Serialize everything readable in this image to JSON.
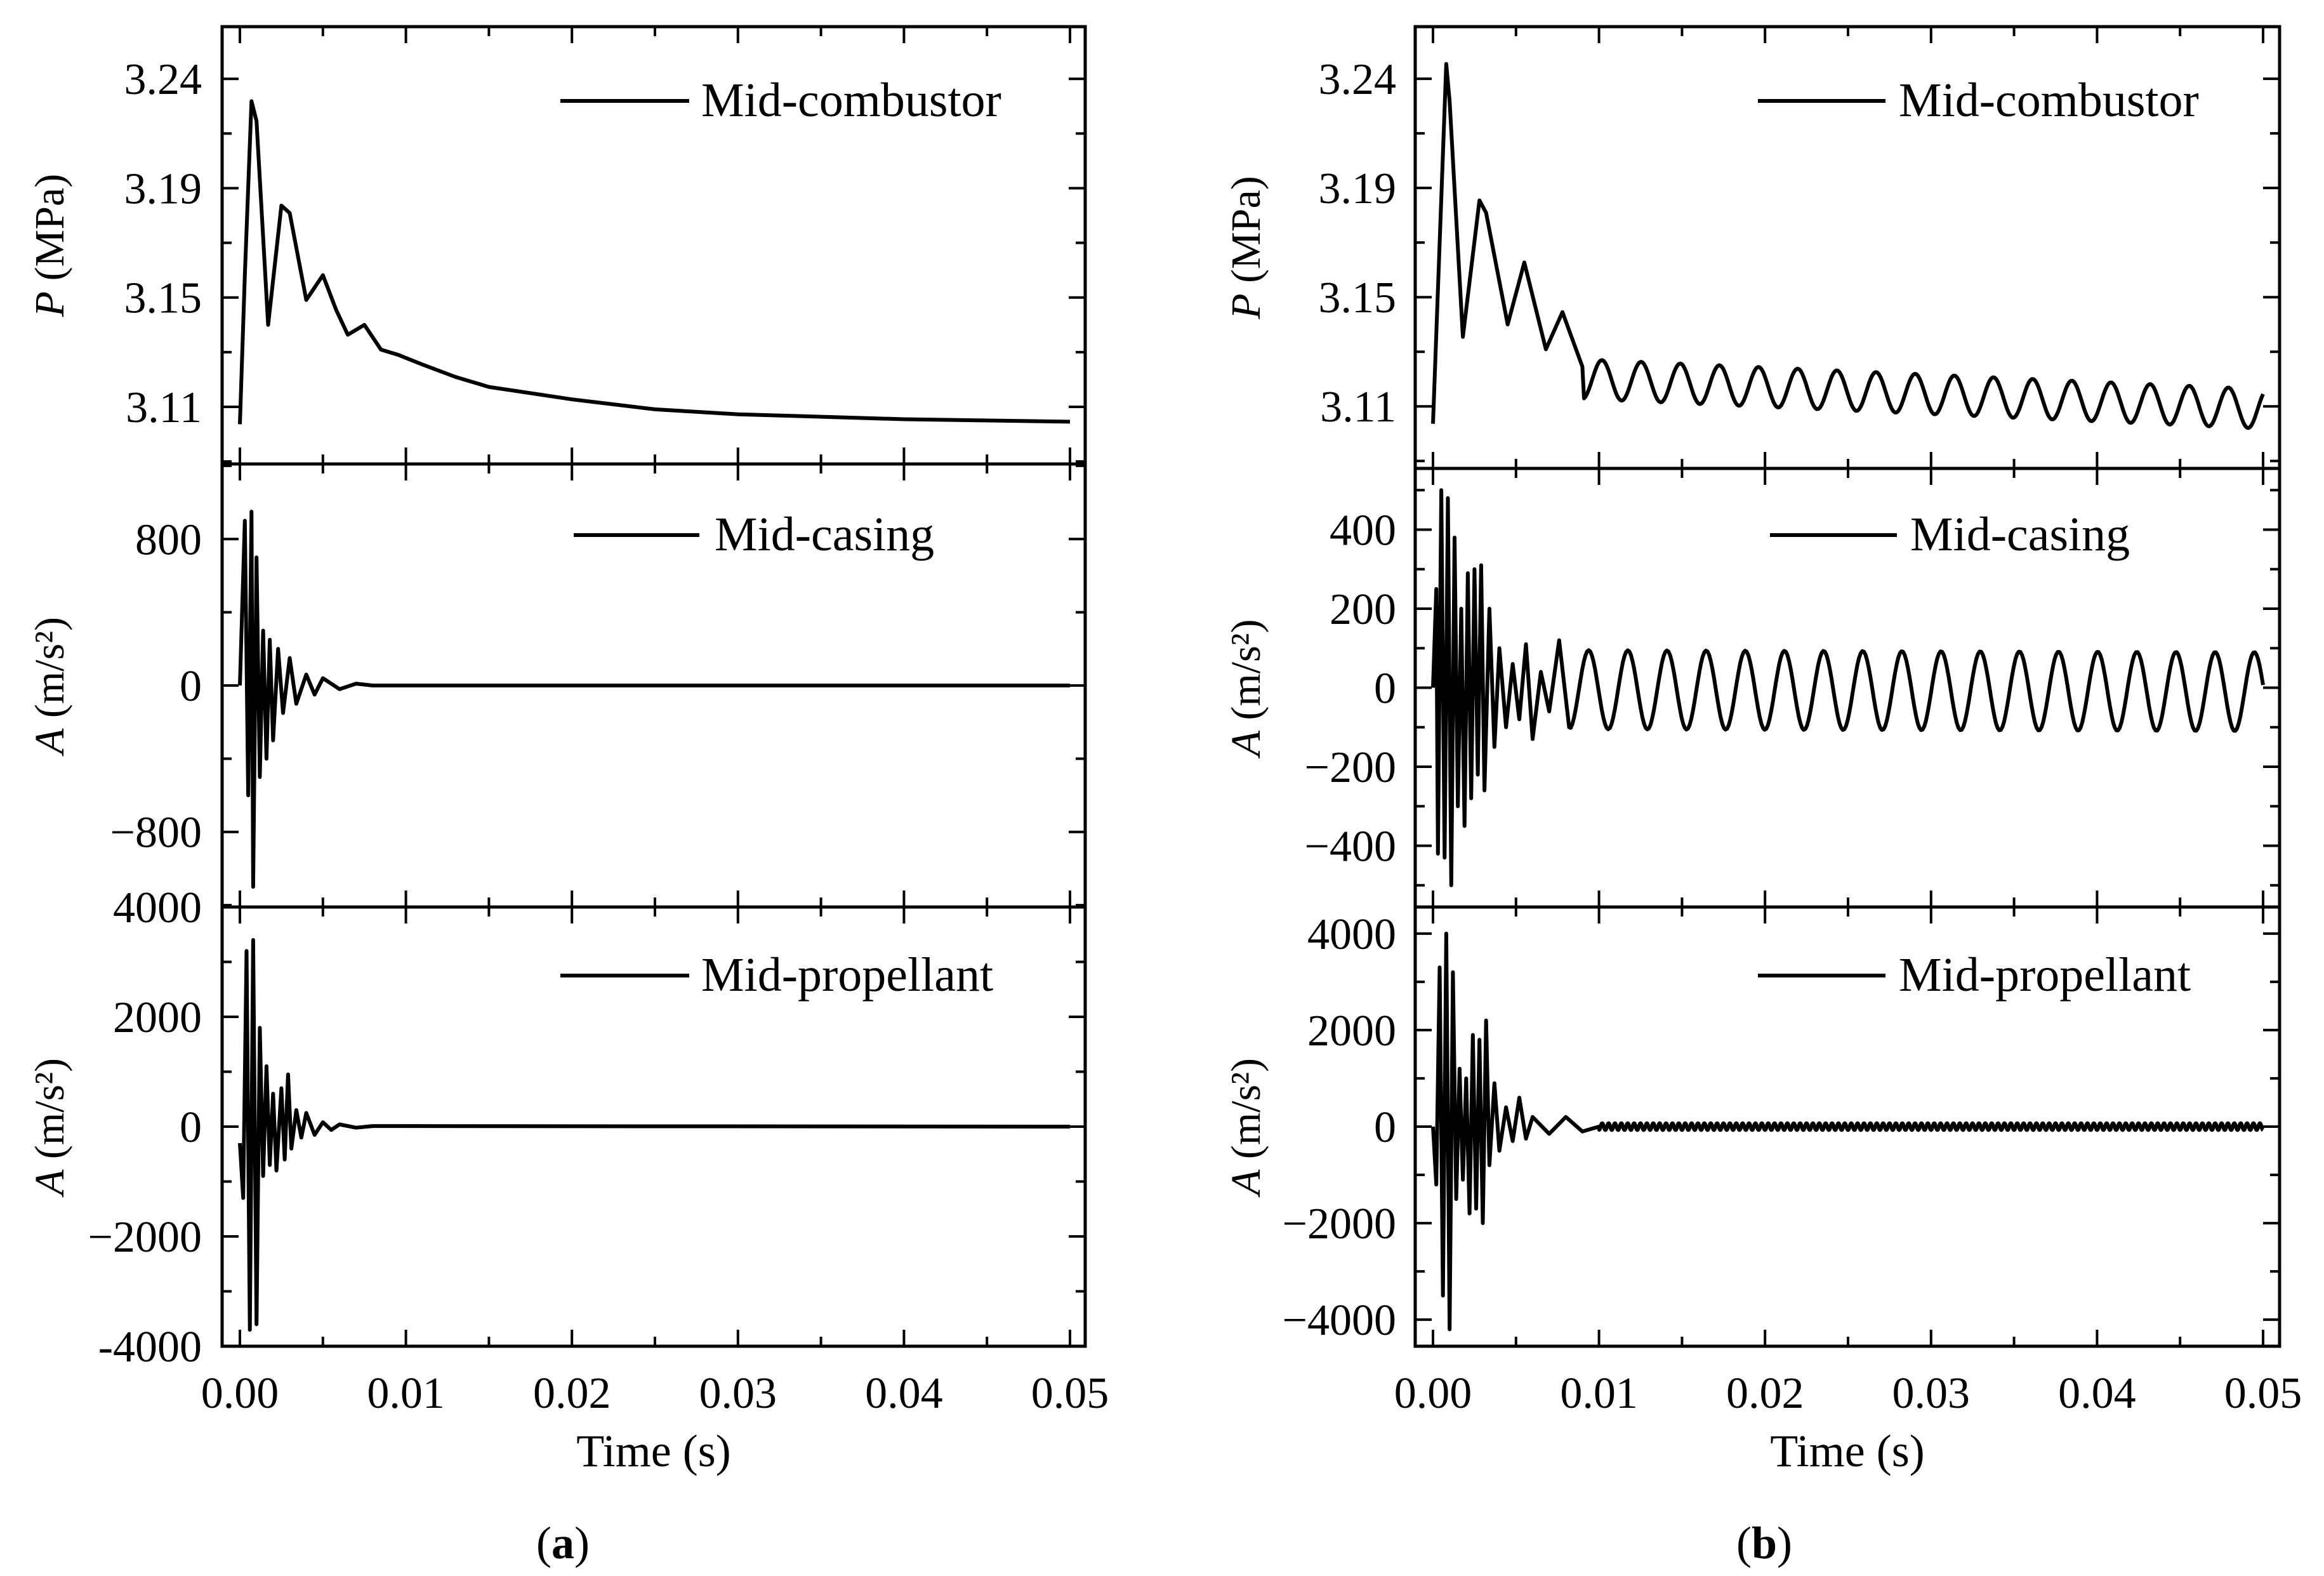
{
  "chart_data": [
    {
      "panel_label": "(a)",
      "panel_letter": "a",
      "type": "line",
      "xlabel": "Time (s)",
      "xlim": [
        -0.001,
        0.0505
      ],
      "xticks": [
        0.0,
        0.01,
        0.02,
        0.03,
        0.04,
        0.05
      ],
      "xtick_labels": [
        "0.00",
        "0.01",
        "0.02",
        "0.03",
        "0.04",
        "0.05"
      ],
      "subplots": [
        {
          "ylabel_var": "P",
          "ylabel_unit": " (MPa)",
          "ylim": [
            3.084,
            3.26
          ],
          "yticks": [
            3.107,
            3.151,
            3.195,
            3.239
          ],
          "ytick_labels": [
            "3.11",
            "3.15",
            "3.19",
            "3.24"
          ],
          "legend": "Mid-combustor",
          "legend_placement": "top-right",
          "points": [
            [
              0,
              3.1
            ],
            [
              0.0003,
              3.16
            ],
            [
              0.0007,
              3.23
            ],
            [
              0.001,
              3.222
            ],
            [
              0.0017,
              3.14
            ],
            [
              0.0025,
              3.188
            ],
            [
              0.003,
              3.185
            ],
            [
              0.004,
              3.15
            ],
            [
              0.005,
              3.16
            ],
            [
              0.0058,
              3.146
            ],
            [
              0.0065,
              3.136
            ],
            [
              0.0075,
              3.14
            ],
            [
              0.0085,
              3.13
            ],
            [
              0.0095,
              3.128
            ],
            [
              0.011,
              3.124
            ],
            [
              0.013,
              3.119
            ],
            [
              0.015,
              3.115
            ],
            [
              0.02,
              3.11
            ],
            [
              0.025,
              3.106
            ],
            [
              0.03,
              3.104
            ],
            [
              0.04,
              3.102
            ],
            [
              0.05,
              3.101
            ]
          ]
        },
        {
          "ylabel_var": "A",
          "ylabel_unit": " (m/s²)",
          "ylim": [
            -1210,
            1210
          ],
          "yticks": [
            -800,
            0,
            800
          ],
          "ytick_labels": [
            "−800",
            "0",
            "800"
          ],
          "legend": "Mid-casing",
          "legend_placement": "top-right",
          "points": [
            [
              0,
              0
            ],
            [
              0.0003,
              900
            ],
            [
              0.0005,
              -600
            ],
            [
              0.0007,
              950
            ],
            [
              0.0008,
              -1100
            ],
            [
              0.001,
              700
            ],
            [
              0.0012,
              -500
            ],
            [
              0.0014,
              300
            ],
            [
              0.0016,
              -400
            ],
            [
              0.0018,
              250
            ],
            [
              0.002,
              -300
            ],
            [
              0.0023,
              200
            ],
            [
              0.0026,
              -150
            ],
            [
              0.003,
              150
            ],
            [
              0.0034,
              -100
            ],
            [
              0.004,
              60
            ],
            [
              0.0045,
              -50
            ],
            [
              0.005,
              40
            ],
            [
              0.006,
              -20
            ],
            [
              0.007,
              10
            ],
            [
              0.008,
              0
            ],
            [
              0.05,
              0
            ]
          ]
        },
        {
          "ylabel_var": "A",
          "ylabel_unit": " (m/s²)",
          "ylim": [
            -4000,
            4000
          ],
          "yticks": [
            -4000,
            -2000,
            0,
            2000,
            4000
          ],
          "ytick_labels": [
            "-4000",
            "−2000",
            "0",
            "2000",
            "4000"
          ],
          "legend": "Mid-propellant",
          "legend_placement": "top-right",
          "points": [
            [
              0,
              -300
            ],
            [
              0.0002,
              -1300
            ],
            [
              0.0004,
              3200
            ],
            [
              0.0006,
              -3700
            ],
            [
              0.0008,
              3400
            ],
            [
              0.001,
              -3600
            ],
            [
              0.0012,
              1800
            ],
            [
              0.0014,
              -900
            ],
            [
              0.0016,
              1100
            ],
            [
              0.0018,
              -700
            ],
            [
              0.002,
              600
            ],
            [
              0.0022,
              -800
            ],
            [
              0.0025,
              700
            ],
            [
              0.0027,
              -600
            ],
            [
              0.0029,
              950
            ],
            [
              0.0031,
              -400
            ],
            [
              0.0034,
              300
            ],
            [
              0.0037,
              -200
            ],
            [
              0.004,
              250
            ],
            [
              0.0045,
              -150
            ],
            [
              0.005,
              80
            ],
            [
              0.0055,
              -60
            ],
            [
              0.006,
              40
            ],
            [
              0.007,
              -20
            ],
            [
              0.008,
              10
            ],
            [
              0.05,
              0
            ]
          ]
        }
      ]
    },
    {
      "panel_label": "(b)",
      "panel_letter": "b",
      "type": "line",
      "xlabel": "Time (s)",
      "xlim": [
        -0.001,
        0.0505
      ],
      "xticks": [
        0.0,
        0.01,
        0.02,
        0.03,
        0.04,
        0.05
      ],
      "xtick_labels": [
        "0.00",
        "0.01",
        "0.02",
        "0.03",
        "0.04",
        "0.05"
      ],
      "subplots": [
        {
          "ylabel_var": "P",
          "ylabel_unit": " (MPa)",
          "ylim": [
            3.082,
            3.26
          ],
          "yticks": [
            3.107,
            3.151,
            3.195,
            3.239
          ],
          "ytick_labels": [
            "3.11",
            "3.15",
            "3.19",
            "3.24"
          ],
          "legend": "Mid-combustor",
          "legend_placement": "top-right",
          "points": [
            [
              0,
              3.1
            ],
            [
              0.0008,
              3.245
            ],
            [
              0.001,
              3.23
            ],
            [
              0.0018,
              3.135
            ],
            [
              0.0028,
              3.19
            ],
            [
              0.0032,
              3.185
            ],
            [
              0.0045,
              3.14
            ],
            [
              0.0055,
              3.165
            ],
            [
              0.0068,
              3.13
            ],
            [
              0.0078,
              3.145
            ],
            [
              0.009,
              3.123
            ]
          ],
          "steady_oscillation": {
            "start": 0.009,
            "end": 0.05,
            "mean_start": 3.118,
            "mean_end": 3.106,
            "amplitude": 0.008,
            "frequency_hz": 424
          }
        },
        {
          "ylabel_var": "A",
          "ylabel_unit": " (m/s²)",
          "ylim": [
            -555,
            555
          ],
          "yticks": [
            -400,
            -200,
            0,
            200,
            400
          ],
          "ytick_labels": [
            "−400",
            "−200",
            "0",
            "200",
            "400"
          ],
          "legend": "Mid-casing",
          "legend_placement": "top-right",
          "points": [
            [
              0,
              0
            ],
            [
              0.0002,
              250
            ],
            [
              0.0003,
              -420
            ],
            [
              0.0005,
              500
            ],
            [
              0.0007,
              -430
            ],
            [
              0.0009,
              480
            ],
            [
              0.0011,
              -500
            ],
            [
              0.0013,
              380
            ],
            [
              0.0015,
              -300
            ],
            [
              0.0017,
              200
            ],
            [
              0.0019,
              -350
            ],
            [
              0.0021,
              290
            ],
            [
              0.0023,
              -280
            ],
            [
              0.0025,
              300
            ],
            [
              0.0027,
              -220
            ],
            [
              0.0029,
              310
            ],
            [
              0.0031,
              -260
            ],
            [
              0.0034,
              200
            ],
            [
              0.0037,
              -150
            ],
            [
              0.004,
              100
            ],
            [
              0.0044,
              -100
            ],
            [
              0.0048,
              60
            ],
            [
              0.0052,
              -80
            ],
            [
              0.0056,
              110
            ],
            [
              0.006,
              -130
            ],
            [
              0.0065,
              40
            ],
            [
              0.007,
              -60
            ],
            [
              0.0076,
              120
            ],
            [
              0.0082,
              -100
            ]
          ],
          "steady_oscillation": {
            "start": 0.0082,
            "end": 0.05,
            "mean_start": -5,
            "mean_end": -10,
            "amplitude": 100,
            "frequency_hz": 424
          }
        },
        {
          "ylabel_var": "A",
          "ylabel_unit": " (m/s²)",
          "ylim": [
            -4550,
            4550
          ],
          "yticks": [
            -4000,
            -2000,
            0,
            2000,
            4000
          ],
          "ytick_labels": [
            "−4000",
            "−2000",
            "0",
            "2000",
            "4000"
          ],
          "legend": "Mid-propellant",
          "legend_placement": "top-right",
          "points": [
            [
              0,
              0
            ],
            [
              0.0002,
              -1200
            ],
            [
              0.0004,
              3300
            ],
            [
              0.0006,
              -3500
            ],
            [
              0.0008,
              4000
            ],
            [
              0.001,
              -4200
            ],
            [
              0.0012,
              3200
            ],
            [
              0.0014,
              -1500
            ],
            [
              0.0016,
              1200
            ],
            [
              0.0018,
              -1100
            ],
            [
              0.002,
              1000
            ],
            [
              0.0022,
              -1800
            ],
            [
              0.0024,
              1900
            ],
            [
              0.0026,
              -1700
            ],
            [
              0.0028,
              1800
            ],
            [
              0.003,
              -2000
            ],
            [
              0.0032,
              2200
            ],
            [
              0.0034,
              -800
            ],
            [
              0.0037,
              900
            ],
            [
              0.004,
              -500
            ],
            [
              0.0044,
              400
            ],
            [
              0.0048,
              -300
            ],
            [
              0.0052,
              600
            ],
            [
              0.0056,
              -250
            ],
            [
              0.006,
              200
            ],
            [
              0.007,
              -150
            ],
            [
              0.008,
              200
            ],
            [
              0.009,
              -100
            ],
            [
              0.01,
              0
            ]
          ],
          "steady_oscillation": {
            "start": 0.01,
            "end": 0.05,
            "mean_start": 0,
            "mean_end": 0,
            "amplitude": 70,
            "frequency_hz": 2600
          }
        }
      ]
    }
  ]
}
